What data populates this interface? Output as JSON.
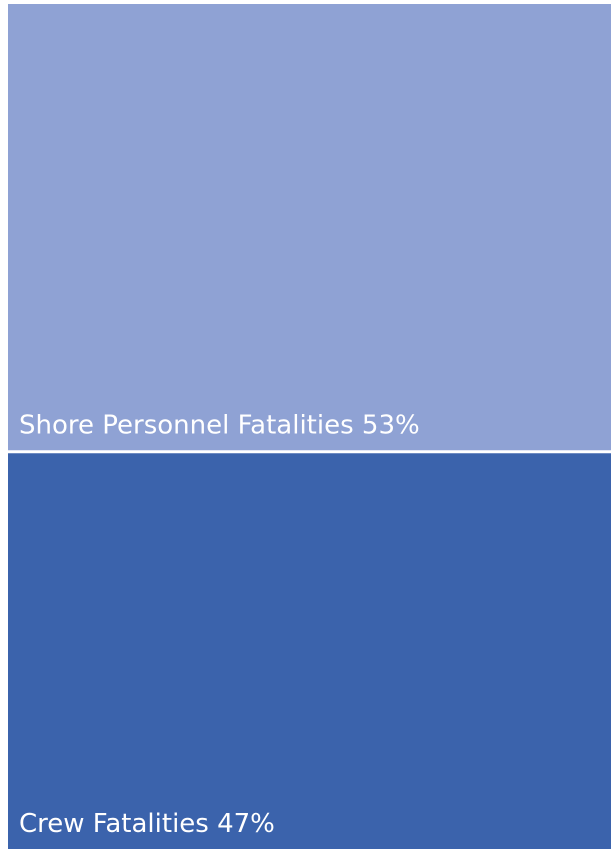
{
  "chart_data": {
    "type": "treemap",
    "segments": [
      {
        "label": "Shore Personnel Fatalities 53%",
        "name": "Shore Personnel Fatalities",
        "value": 53,
        "color": "#8fa2d4"
      },
      {
        "label": "Crew Fatalities 47%",
        "name": "Crew Fatalities",
        "value": 47,
        "color": "#3b63ac"
      }
    ]
  }
}
